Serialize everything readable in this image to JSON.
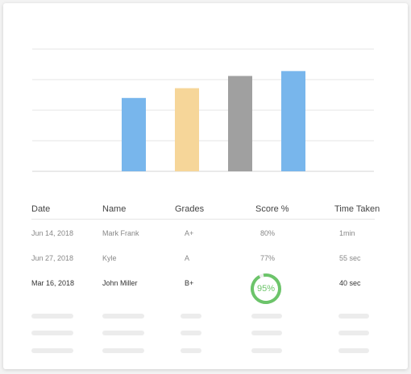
{
  "chart_data": {
    "type": "bar",
    "categories": [
      "",
      "",
      "",
      ""
    ],
    "values": [
      60,
      68,
      78,
      82
    ],
    "colors": [
      "#78b6ec",
      "#f6d699",
      "#a0a0a0",
      "#78b6ec"
    ],
    "ylim": [
      0,
      100
    ],
    "grid": true,
    "gridlines": 5
  },
  "table": {
    "headers": [
      "Date",
      "Name",
      "Grades",
      "Score %",
      "Time Taken"
    ],
    "rows": [
      {
        "date": "Jun 14, 2018",
        "name": "Mark Frank",
        "grade": "A+",
        "score": "80%",
        "time": "1min"
      },
      {
        "date": "Jun 27, 2018",
        "name": "Kyle",
        "grade": "A",
        "score": "77%",
        "time": "55 sec"
      },
      {
        "date": "Mar 16, 2018",
        "name": "John Miller",
        "grade": "B+",
        "score": "95%",
        "time": "40 sec"
      }
    ],
    "highlight_score_fraction": 0.95,
    "ring_color": "#6cc46a",
    "ring_track_color": "#ededed"
  }
}
